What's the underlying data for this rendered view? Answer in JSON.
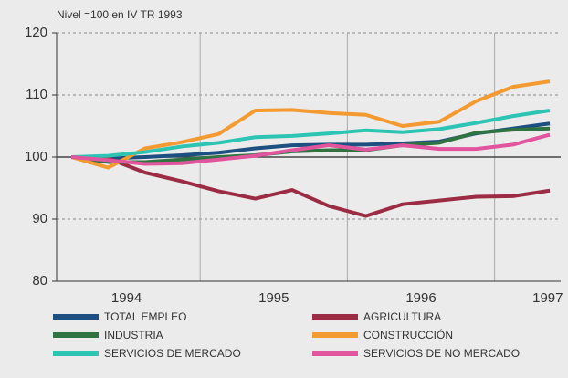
{
  "chart_data": {
    "type": "line",
    "subtitle": "Nivel =100 en IV TR 1993",
    "year_labels": [
      "1994",
      "1995",
      "1996",
      "1997"
    ],
    "ylim": [
      80,
      120
    ],
    "yticks": [
      80,
      90,
      100,
      110,
      120
    ],
    "grid": true,
    "reference_line": 100,
    "series": [
      {
        "name": "TOTAL EMPLEO",
        "color": "#1d4f80",
        "values": [
          100,
          99.8,
          100,
          100.3,
          100.7,
          101.4,
          101.9,
          102,
          102,
          102.2,
          102.5,
          103.8,
          104.6,
          105.4
        ]
      },
      {
        "name": "AGRICULTURA",
        "color": "#9b2c44",
        "values": [
          100,
          99.8,
          97.5,
          96.1,
          94.5,
          93.3,
          94.7,
          92.1,
          90.5,
          92.4,
          93,
          93.6,
          93.7,
          94.6
        ]
      },
      {
        "name": "INDUSTRIA",
        "color": "#2e7340",
        "values": [
          100,
          99.2,
          99.2,
          99.6,
          100,
          100.3,
          100.9,
          101.1,
          101.1,
          101.9,
          102.3,
          103.9,
          104.4,
          104.6
        ]
      },
      {
        "name": "CONSTRUCCIÓN",
        "color": "#f39a30",
        "values": [
          100,
          98.3,
          101.4,
          102.4,
          103.7,
          107.5,
          107.6,
          107.1,
          106.8,
          105,
          105.7,
          109,
          111.3,
          112.2
        ]
      },
      {
        "name": "SERVICIOS DE MERCADO",
        "color": "#2ec4b4",
        "values": [
          100,
          100.2,
          100.8,
          101.7,
          102.3,
          103.2,
          103.4,
          103.8,
          104.3,
          104,
          104.5,
          105.5,
          106.6,
          107.5
        ]
      },
      {
        "name": "SERVICIOS DE NO MERCADO",
        "color": "#e0559e",
        "values": [
          100,
          99.5,
          98.9,
          99,
          99.6,
          100.2,
          101.1,
          101.9,
          101.2,
          101.9,
          101.3,
          101.3,
          102,
          103.6
        ]
      }
    ]
  }
}
